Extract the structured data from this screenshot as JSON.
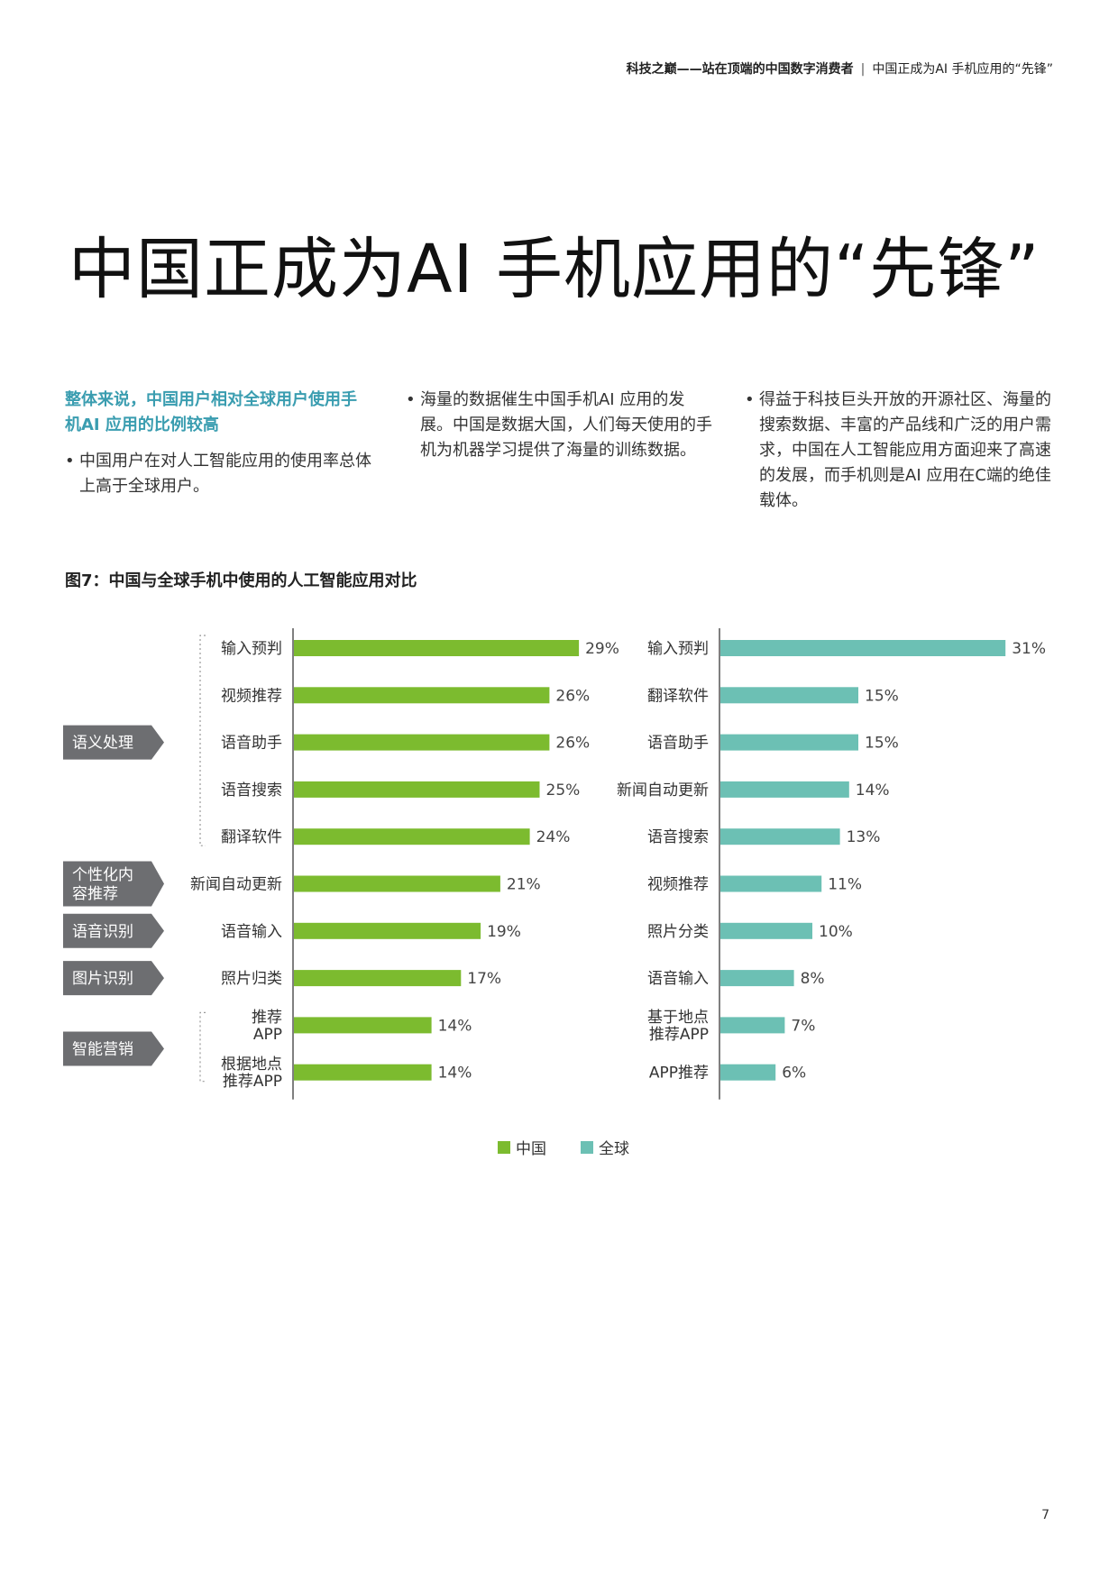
{
  "header": {
    "report_title": "科技之巅——站在顶端的中国数字消费者",
    "separator": "|",
    "section_title": "中国正成为AI 手机应用的“先锋”"
  },
  "page_title": "中国正成为AI 手机应用的“先锋”",
  "intro": {
    "col1_lead": "整体来说，中国用户相对全球用户使用手机AI 应用的比例较高",
    "col1_bullet": "中国用户在对人工智能应用的使用率总体上高于全球用户。",
    "col2_bullet": "海量的数据催生中国手机AI 应用的发展。中国是数据大国，人们每天使用的手机为机器学习提供了海量的训练数据。",
    "col3_bullet": "得益于科技巨头开放的开源社区、海量的搜索数据、丰富的产品线和广泛的用户需求，中国在人工智能应用方面迎来了高速的发展，而手机则是AI 应用在C端的绝佳载体。"
  },
  "figure_title": "图7：中国与全球手机中使用的人工智能应用对比",
  "colors": {
    "china": "#7cbb2f",
    "global": "#6cc0b4",
    "tag": "#6d6e71"
  },
  "chart_data": [
    {
      "type": "bar",
      "orientation": "horizontal",
      "series_name": "中国",
      "categories": [
        "输入预判",
        "视频推荐",
        "语音助手",
        "语音搜索",
        "翻译软件",
        "新闻自动更新",
        "语音输入",
        "照片归类",
        "推荐\nAPP",
        "根据地点\n推荐APP"
      ],
      "values": [
        29,
        26,
        26,
        25,
        24,
        21,
        19,
        17,
        14,
        14
      ],
      "value_labels": [
        "29%",
        "26%",
        "26%",
        "25%",
        "24%",
        "21%",
        "19%",
        "17%",
        "14%",
        "14%"
      ],
      "groups": [
        {
          "label": "语义处理",
          "from": 0,
          "to": 4
        },
        {
          "label": "个性化内\n容推荐",
          "from": 5,
          "to": 5
        },
        {
          "label": "语音识别",
          "from": 6,
          "to": 6
        },
        {
          "label": "图片识别",
          "from": 7,
          "to": 7
        },
        {
          "label": "智能营销",
          "from": 8,
          "to": 9
        }
      ]
    },
    {
      "type": "bar",
      "orientation": "horizontal",
      "series_name": "全球",
      "categories": [
        "输入预判",
        "翻译软件",
        "语音助手",
        "新闻自动更新",
        "语音搜索",
        "视频推荐",
        "照片分类",
        "语音输入",
        "基于地点\n推荐APP",
        "APP推荐"
      ],
      "values": [
        31,
        15,
        15,
        14,
        13,
        11,
        10,
        8,
        7,
        6
      ],
      "value_labels": [
        "31%",
        "15%",
        "15%",
        "14%",
        "13%",
        "11%",
        "10%",
        "8%",
        "7%",
        "6%"
      ]
    }
  ],
  "legend": [
    {
      "label": "中国",
      "color": "#7cbb2f"
    },
    {
      "label": "全球",
      "color": "#6cc0b4"
    }
  ],
  "page_number": "7"
}
